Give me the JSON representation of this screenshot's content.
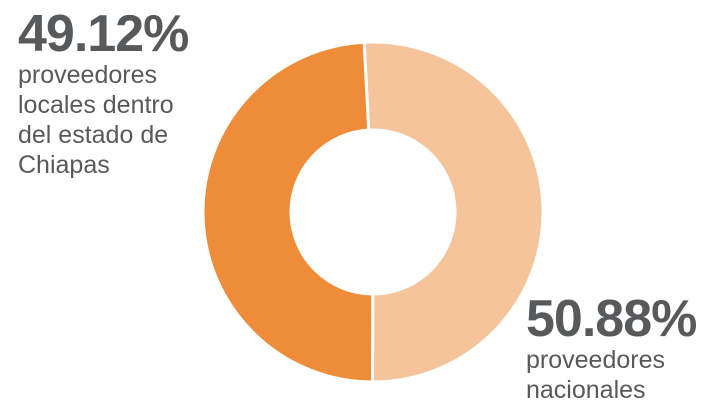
{
  "chart_data": {
    "type": "pie",
    "donut": true,
    "slices": [
      {
        "percent_label": "50.88%",
        "value": 50.88,
        "label_lines": [
          "proveedores",
          "nacionales"
        ],
        "color": "#f6c49b"
      },
      {
        "percent_label": "49.12%",
        "value": 49.12,
        "label_lines": [
          "proveedores",
          "locales dentro",
          "del estado de",
          "Chiapas"
        ],
        "color": "#ef8c3a"
      }
    ]
  }
}
